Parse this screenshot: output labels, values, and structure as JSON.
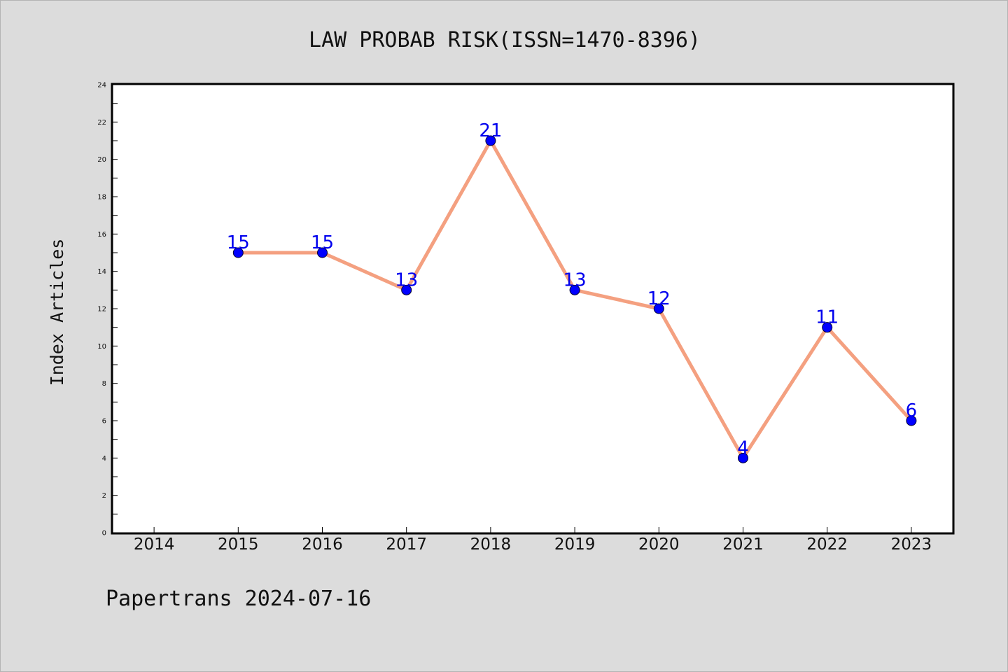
{
  "footer": "Papertrans 2024-07-16",
  "colors": {
    "line": "#f4a080",
    "marker": "#0000ff",
    "data_label": "#0000ee",
    "background": "#dcdcdc",
    "plot_background": "#ffffff"
  },
  "chart_data": {
    "type": "line",
    "title": "LAW PROBAB RISK(ISSN=1470-8396)",
    "xlabel": "",
    "ylabel": "Index Articles",
    "x_ticks": [
      "2014",
      "2015",
      "2016",
      "2017",
      "2018",
      "2019",
      "2020",
      "2021",
      "2022",
      "2023"
    ],
    "y_ticks": [
      0,
      2,
      4,
      6,
      8,
      10,
      12,
      14,
      16,
      18,
      20,
      22,
      24
    ],
    "xlim": [
      2013.5,
      2023.5
    ],
    "ylim": [
      0,
      24
    ],
    "grid": false,
    "series": [
      {
        "x": [
          2015,
          2016,
          2017,
          2018,
          2019,
          2020,
          2021,
          2022,
          2023
        ],
        "values": [
          15,
          15,
          13,
          21,
          13,
          12,
          4,
          11,
          6
        ]
      }
    ]
  }
}
